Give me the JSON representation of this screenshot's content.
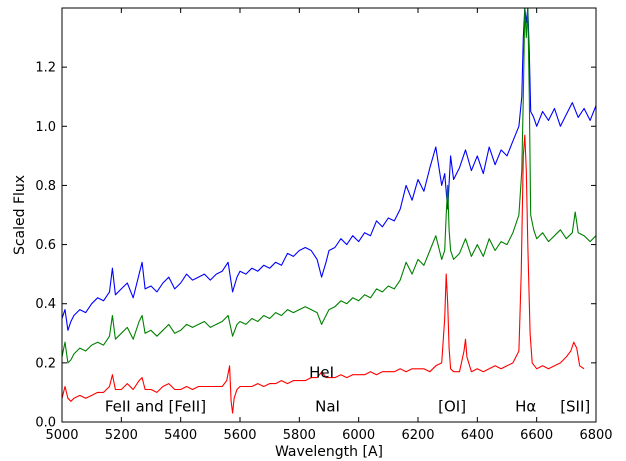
{
  "chart_data": {
    "type": "line",
    "xlabel": "Wavelength [A]",
    "ylabel": "Scaled Flux",
    "xlim": [
      5000,
      6800
    ],
    "ylim": [
      0.0,
      1.4
    ],
    "xticks": [
      5000,
      5200,
      5400,
      5600,
      5800,
      6000,
      6200,
      6400,
      6600,
      6800
    ],
    "xtick_labels": [
      "5000",
      "5200",
      "5400",
      "5600",
      "5800",
      "6000",
      "6200",
      "6400",
      "6600",
      "6800"
    ],
    "yticks": [
      0.0,
      0.2,
      0.4,
      0.6,
      0.8,
      1.0,
      1.2
    ],
    "ytick_labels": [
      "0.0",
      "0.2",
      "0.4",
      "0.6",
      "0.8",
      "1.0",
      "1.2"
    ],
    "grid": false,
    "series": [
      {
        "color": "#0000ff",
        "x": [
          5000,
          5010,
          5020,
          5030,
          5040,
          5060,
          5080,
          5100,
          5120,
          5140,
          5160,
          5170,
          5180,
          5200,
          5220,
          5240,
          5260,
          5270,
          5280,
          5300,
          5320,
          5340,
          5360,
          5380,
          5400,
          5420,
          5440,
          5460,
          5480,
          5500,
          5520,
          5540,
          5560,
          5575,
          5590,
          5600,
          5620,
          5640,
          5660,
          5680,
          5700,
          5720,
          5740,
          5760,
          5780,
          5800,
          5820,
          5840,
          5860,
          5875,
          5890,
          5900,
          5920,
          5940,
          5960,
          5980,
          6000,
          6020,
          6040,
          6060,
          6080,
          6100,
          6120,
          6140,
          6160,
          6180,
          6200,
          6220,
          6240,
          6260,
          6280,
          6290,
          6300,
          6310,
          6320,
          6340,
          6360,
          6380,
          6400,
          6420,
          6440,
          6460,
          6480,
          6500,
          6520,
          6540,
          6550,
          6555,
          6560,
          6565,
          6570,
          6575,
          6580,
          6590,
          6600,
          6620,
          6640,
          6660,
          6680,
          6700,
          6720,
          6740,
          6760,
          6780,
          6800
        ],
        "y": [
          0.35,
          0.38,
          0.31,
          0.34,
          0.36,
          0.38,
          0.37,
          0.4,
          0.42,
          0.41,
          0.44,
          0.52,
          0.43,
          0.45,
          0.47,
          0.42,
          0.5,
          0.54,
          0.45,
          0.46,
          0.44,
          0.47,
          0.49,
          0.45,
          0.47,
          0.5,
          0.48,
          0.49,
          0.5,
          0.48,
          0.5,
          0.51,
          0.54,
          0.44,
          0.49,
          0.51,
          0.5,
          0.52,
          0.51,
          0.53,
          0.52,
          0.54,
          0.53,
          0.57,
          0.56,
          0.58,
          0.59,
          0.58,
          0.55,
          0.49,
          0.54,
          0.58,
          0.59,
          0.62,
          0.6,
          0.63,
          0.61,
          0.64,
          0.63,
          0.68,
          0.66,
          0.69,
          0.68,
          0.72,
          0.8,
          0.75,
          0.82,
          0.78,
          0.86,
          0.93,
          0.8,
          0.84,
          0.72,
          0.9,
          0.82,
          0.86,
          0.92,
          0.85,
          0.9,
          0.84,
          0.93,
          0.87,
          0.92,
          0.9,
          0.95,
          1.0,
          1.1,
          1.3,
          1.4,
          1.35,
          1.4,
          1.25,
          1.05,
          1.03,
          1.0,
          1.05,
          1.02,
          1.06,
          1.0,
          1.04,
          1.08,
          1.03,
          1.06,
          1.02,
          1.07
        ]
      },
      {
        "color": "#008000",
        "x": [
          5000,
          5010,
          5020,
          5030,
          5040,
          5060,
          5080,
          5100,
          5120,
          5140,
          5160,
          5170,
          5180,
          5200,
          5220,
          5240,
          5260,
          5270,
          5280,
          5300,
          5320,
          5340,
          5360,
          5380,
          5400,
          5420,
          5440,
          5460,
          5480,
          5500,
          5520,
          5540,
          5560,
          5575,
          5590,
          5600,
          5620,
          5640,
          5660,
          5680,
          5700,
          5720,
          5740,
          5760,
          5780,
          5800,
          5820,
          5840,
          5860,
          5875,
          5890,
          5900,
          5920,
          5940,
          5960,
          5980,
          6000,
          6020,
          6040,
          6060,
          6080,
          6100,
          6120,
          6140,
          6160,
          6180,
          6200,
          6220,
          6240,
          6260,
          6280,
          6290,
          6295,
          6300,
          6305,
          6310,
          6320,
          6340,
          6360,
          6380,
          6400,
          6420,
          6440,
          6460,
          6480,
          6500,
          6520,
          6540,
          6550,
          6555,
          6560,
          6565,
          6570,
          6575,
          6580,
          6590,
          6600,
          6620,
          6640,
          6660,
          6680,
          6700,
          6720,
          6730,
          6740,
          6760,
          6780,
          6800
        ],
        "y": [
          0.22,
          0.27,
          0.2,
          0.21,
          0.23,
          0.25,
          0.24,
          0.26,
          0.27,
          0.26,
          0.29,
          0.36,
          0.28,
          0.3,
          0.32,
          0.28,
          0.34,
          0.36,
          0.3,
          0.31,
          0.29,
          0.31,
          0.33,
          0.3,
          0.31,
          0.33,
          0.32,
          0.33,
          0.34,
          0.32,
          0.33,
          0.34,
          0.36,
          0.29,
          0.33,
          0.34,
          0.33,
          0.35,
          0.34,
          0.36,
          0.35,
          0.37,
          0.36,
          0.38,
          0.37,
          0.38,
          0.39,
          0.38,
          0.37,
          0.33,
          0.36,
          0.38,
          0.39,
          0.41,
          0.4,
          0.42,
          0.41,
          0.43,
          0.42,
          0.45,
          0.44,
          0.46,
          0.45,
          0.48,
          0.54,
          0.5,
          0.55,
          0.53,
          0.58,
          0.63,
          0.55,
          0.58,
          0.7,
          0.8,
          0.65,
          0.58,
          0.55,
          0.57,
          0.62,
          0.56,
          0.6,
          0.56,
          0.62,
          0.58,
          0.61,
          0.6,
          0.64,
          0.7,
          0.85,
          1.1,
          1.4,
          1.3,
          1.4,
          1.1,
          0.7,
          0.65,
          0.62,
          0.64,
          0.61,
          0.63,
          0.65,
          0.62,
          0.64,
          0.71,
          0.64,
          0.63,
          0.61,
          0.63
        ]
      },
      {
        "color": "#ff0000",
        "x": [
          5000,
          5010,
          5020,
          5030,
          5040,
          5060,
          5080,
          5100,
          5120,
          5140,
          5160,
          5170,
          5180,
          5200,
          5220,
          5240,
          5260,
          5270,
          5280,
          5300,
          5320,
          5340,
          5360,
          5380,
          5400,
          5420,
          5440,
          5460,
          5480,
          5500,
          5520,
          5540,
          5555,
          5565,
          5570,
          5575,
          5580,
          5590,
          5600,
          5620,
          5640,
          5660,
          5680,
          5700,
          5720,
          5740,
          5760,
          5780,
          5800,
          5820,
          5840,
          5860,
          5876,
          5890,
          5900,
          5920,
          5940,
          5960,
          5980,
          6000,
          6020,
          6040,
          6060,
          6080,
          6100,
          6120,
          6140,
          6160,
          6180,
          6200,
          6220,
          6240,
          6260,
          6280,
          6290,
          6295,
          6300,
          6305,
          6310,
          6320,
          6340,
          6355,
          6360,
          6365,
          6380,
          6400,
          6420,
          6440,
          6460,
          6480,
          6500,
          6520,
          6540,
          6548,
          6555,
          6560,
          6565,
          6570,
          6578,
          6585,
          6600,
          6620,
          6640,
          6660,
          6680,
          6700,
          6715,
          6725,
          6735,
          6745,
          6760
        ],
        "y": [
          0.08,
          0.12,
          0.08,
          0.07,
          0.08,
          0.09,
          0.08,
          0.09,
          0.1,
          0.1,
          0.12,
          0.16,
          0.11,
          0.11,
          0.13,
          0.11,
          0.14,
          0.15,
          0.11,
          0.11,
          0.1,
          0.12,
          0.13,
          0.11,
          0.11,
          0.12,
          0.11,
          0.12,
          0.12,
          0.12,
          0.12,
          0.12,
          0.14,
          0.19,
          0.07,
          0.03,
          0.08,
          0.11,
          0.12,
          0.12,
          0.12,
          0.13,
          0.12,
          0.13,
          0.13,
          0.14,
          0.13,
          0.14,
          0.14,
          0.14,
          0.15,
          0.15,
          0.17,
          0.15,
          0.15,
          0.15,
          0.16,
          0.15,
          0.16,
          0.16,
          0.16,
          0.17,
          0.16,
          0.17,
          0.17,
          0.17,
          0.18,
          0.17,
          0.18,
          0.18,
          0.18,
          0.17,
          0.19,
          0.2,
          0.35,
          0.5,
          0.4,
          0.25,
          0.18,
          0.17,
          0.17,
          0.24,
          0.28,
          0.22,
          0.17,
          0.18,
          0.17,
          0.18,
          0.19,
          0.18,
          0.19,
          0.2,
          0.24,
          0.5,
          0.9,
          0.97,
          0.85,
          0.6,
          0.3,
          0.2,
          0.18,
          0.19,
          0.18,
          0.19,
          0.2,
          0.22,
          0.24,
          0.27,
          0.25,
          0.19,
          0.18
        ]
      }
    ],
    "annotations": [
      {
        "text": "FeII and [FeII]",
        "x": 5315,
        "y": 0.035
      },
      {
        "text": "NaI",
        "x": 5895,
        "y": 0.035
      },
      {
        "text": "HeI",
        "x": 5875,
        "y": 0.15
      },
      {
        "text": "[OI]",
        "x": 6315,
        "y": 0.035
      },
      {
        "text": "Hα",
        "x": 6563,
        "y": 0.035
      },
      {
        "text": "[SII]",
        "x": 6730,
        "y": 0.035
      }
    ]
  }
}
